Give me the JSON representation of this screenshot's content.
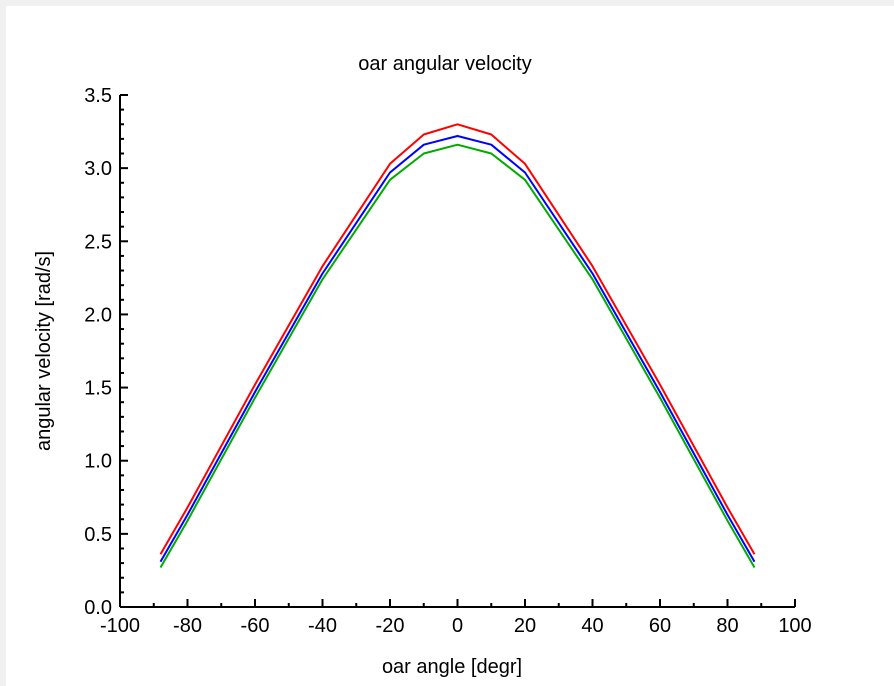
{
  "chart_data": {
    "type": "line",
    "title": "oar angular velocity",
    "xlabel": "oar angle [degr]",
    "ylabel": "angular velocity [rad/s]",
    "xlim": [
      -100,
      100
    ],
    "ylim": [
      0.0,
      3.5
    ],
    "xticks": [
      -100,
      -80,
      -60,
      -40,
      -20,
      0,
      20,
      40,
      60,
      80,
      100
    ],
    "xtick_labels": [
      "-100",
      "-80",
      "-60",
      "-40",
      "-20",
      "0",
      "20",
      "40",
      "60",
      "80",
      "100"
    ],
    "yticks": [
      0,
      0.5,
      1,
      1.5,
      2,
      2.5,
      3,
      3.5
    ],
    "ytick_labels": [
      "0.0",
      "0.5",
      "1.0",
      "1.5",
      "2.0",
      "2.5",
      "3.0",
      "3.5"
    ],
    "grid": false,
    "x": [
      -88,
      -80,
      -60,
      -40,
      -20,
      -10,
      0,
      10,
      20,
      40,
      60,
      80,
      88
    ],
    "series": [
      {
        "color": "#ff0000",
        "values": [
          0.36,
          0.68,
          1.52,
          2.33,
          3.03,
          3.23,
          3.3,
          3.23,
          3.03,
          2.33,
          1.52,
          0.68,
          0.36
        ]
      },
      {
        "color": "#0000ff",
        "values": [
          0.31,
          0.63,
          1.47,
          2.28,
          2.97,
          3.16,
          3.22,
          3.16,
          2.97,
          2.28,
          1.47,
          0.63,
          0.31
        ]
      },
      {
        "color": "#00aa00",
        "values": [
          0.27,
          0.59,
          1.43,
          2.24,
          2.92,
          3.1,
          3.16,
          3.1,
          2.92,
          2.24,
          1.43,
          0.59,
          0.27
        ]
      }
    ]
  }
}
